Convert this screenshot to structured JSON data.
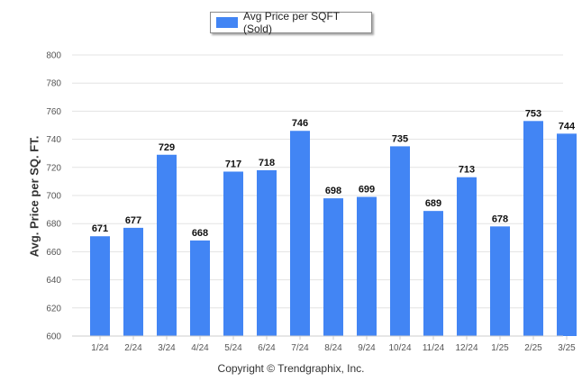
{
  "chart_data": {
    "type": "bar",
    "categories": [
      "1/24",
      "2/24",
      "3/24",
      "4/24",
      "5/24",
      "6/24",
      "7/24",
      "8/24",
      "9/24",
      "10/24",
      "11/24",
      "12/24",
      "1/25",
      "2/25",
      "3/25"
    ],
    "series": [
      {
        "name": "Avg Price per SQFT (Sold)",
        "values": [
          671,
          677,
          729,
          668,
          717,
          718,
          746,
          698,
          699,
          735,
          689,
          713,
          678,
          753,
          744
        ]
      }
    ],
    "ylabel": "Avg. Price per SQ. FT.",
    "ylim": [
      600,
      800
    ],
    "yticks": [
      600,
      620,
      640,
      660,
      680,
      700,
      720,
      740,
      760,
      780,
      800
    ],
    "grid": true,
    "legend": "top-center",
    "bar_color": "#4285f4"
  },
  "footer": {
    "copyright": "Copyright © Trendgraphix, Inc."
  }
}
